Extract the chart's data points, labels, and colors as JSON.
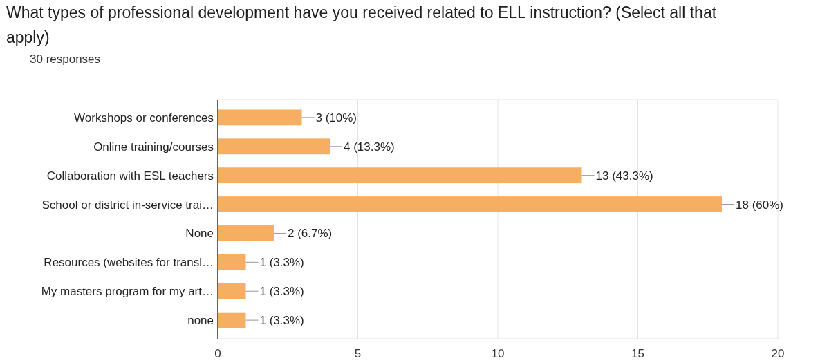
{
  "chart_data": {
    "type": "bar",
    "orientation": "horizontal",
    "title": "What types of professional development have you received related to ELL instruction? (Select all that apply)",
    "subtitle": "30 responses",
    "categories": [
      "Workshops or conferences",
      "Online training/courses",
      "Collaboration with ESL teachers",
      "School or district in-service trai…",
      "None",
      "Resources (websites for transl…",
      "My masters program for my art…",
      "none"
    ],
    "values": [
      3,
      4,
      13,
      18,
      2,
      1,
      1,
      1
    ],
    "value_labels": [
      "3 (10%)",
      "4 (13.3%)",
      "13 (43.3%)",
      "18 (60%)",
      "2 (6.7%)",
      "1 (3.3%)",
      "1 (3.3%)",
      "1 (3.3%)"
    ],
    "color": "#f6ae63",
    "xlim": [
      0,
      20
    ],
    "xticks": [
      0,
      5,
      10,
      15,
      20
    ],
    "grid": "x"
  }
}
